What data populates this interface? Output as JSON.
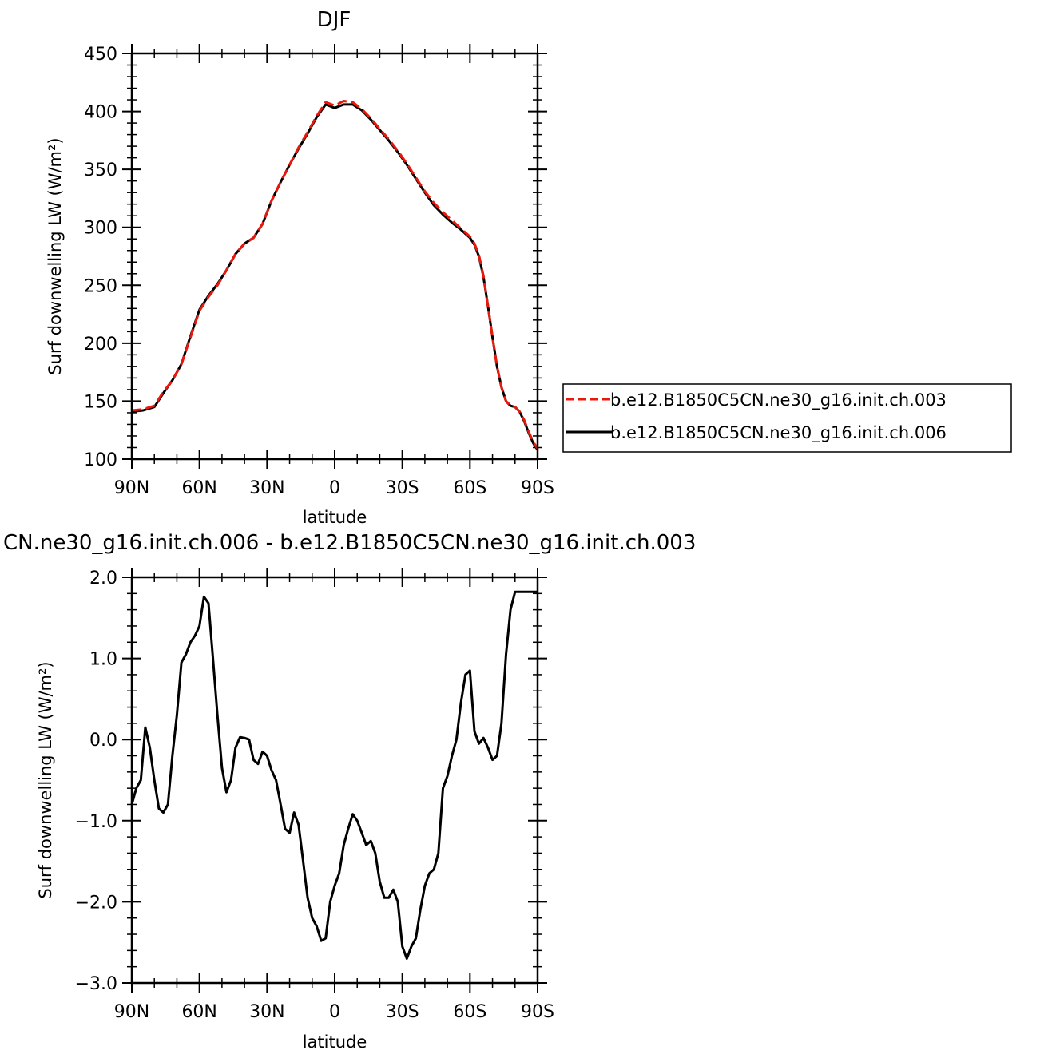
{
  "chart_data": [
    {
      "type": "line",
      "title": "DJF",
      "xlabel": "latitude",
      "ylabel": "Surf  downwelling LW (W/m²)",
      "xlim": [
        90,
        -90
      ],
      "ylim": [
        100,
        450
      ],
      "x_ticks": [
        90,
        60,
        30,
        0,
        -30,
        -60,
        -90
      ],
      "x_tick_labels": [
        "90N",
        "60N",
        "30N",
        "0",
        "30S",
        "60S",
        "90S"
      ],
      "y_ticks": [
        100,
        150,
        200,
        250,
        300,
        350,
        400,
        450
      ],
      "y_tick_labels": [
        "100",
        "150",
        "200",
        "250",
        "300",
        "350",
        "400",
        "450"
      ],
      "legend_position": "right",
      "x": [
        90,
        85,
        80,
        76,
        72,
        68,
        64,
        60,
        56,
        52,
        48,
        44,
        40,
        36,
        32,
        28,
        24,
        20,
        16,
        12,
        8,
        4,
        0,
        -4,
        -8,
        -12,
        -16,
        -20,
        -24,
        -28,
        -32,
        -36,
        -40,
        -44,
        -48,
        -52,
        -56,
        -60,
        -62,
        -64,
        -66,
        -68,
        -70,
        -72,
        -74,
        -76,
        -78,
        -80,
        -82,
        -84,
        -86,
        -88,
        -90
      ],
      "series": [
        {
          "name": "b.e12.B1850C5CN.ne30_g16.init.ch.003",
          "color": "#e8180c",
          "dash": "dashed",
          "values": [
            142,
            143,
            146,
            158,
            168,
            182,
            205,
            228,
            240,
            250,
            263,
            277,
            286,
            291,
            303,
            323,
            339,
            354,
            369,
            382,
            396,
            408,
            405,
            409,
            408,
            402,
            394,
            385,
            376,
            366,
            355,
            343,
            331,
            321,
            313,
            306,
            299,
            292,
            286,
            276,
            258,
            232,
            205,
            180,
            162,
            150,
            146,
            145,
            141,
            134,
            124,
            115,
            109
          ]
        },
        {
          "name": "b.e12.B1850C5CN.ne30_g16.init.ch.006",
          "color": "#000000",
          "dash": "solid",
          "values": [
            141,
            142,
            145,
            157,
            168,
            182,
            206,
            229,
            241,
            251,
            263,
            277,
            286,
            291,
            303,
            323,
            339,
            354,
            368,
            381,
            395,
            406,
            403,
            406,
            406,
            401,
            393,
            384,
            375,
            365,
            354,
            342,
            330,
            319,
            311,
            304,
            298,
            291,
            285,
            275,
            257,
            232,
            205,
            180,
            162,
            150,
            146,
            145,
            141,
            133,
            123,
            114,
            108
          ]
        }
      ]
    },
    {
      "type": "line",
      "title": "CN.ne30_g16.init.ch.006 - b.e12.B1850C5CN.ne30_g16.init.ch.003",
      "xlabel": "latitude",
      "ylabel": "Surf  downwelling LW (W/m²)",
      "xlim": [
        90,
        -90
      ],
      "ylim": [
        -3.0,
        2.0
      ],
      "x_ticks": [
        90,
        60,
        30,
        0,
        -30,
        -60,
        -90
      ],
      "x_tick_labels": [
        "90N",
        "60N",
        "30N",
        "0",
        "30S",
        "60S",
        "90S"
      ],
      "y_ticks": [
        -3.0,
        -2.0,
        -1.0,
        0.0,
        1.0,
        2.0
      ],
      "y_tick_labels": [
        "−3.0",
        "−2.0",
        "−1.0",
        "0.0",
        "1.0",
        "2.0"
      ],
      "x": [
        90,
        88,
        86,
        84,
        82,
        80,
        78,
        76,
        74,
        72,
        70,
        68,
        66,
        64,
        62,
        60,
        58,
        56,
        54,
        52,
        50,
        48,
        46,
        44,
        42,
        40,
        38,
        36,
        34,
        32,
        30,
        28,
        26,
        24,
        22,
        20,
        18,
        16,
        14,
        12,
        10,
        8,
        6,
        4,
        2,
        0,
        -2,
        -4,
        -6,
        -8,
        -10,
        -12,
        -14,
        -16,
        -18,
        -20,
        -22,
        -24,
        -26,
        -28,
        -30,
        -32,
        -34,
        -36,
        -38,
        -40,
        -42,
        -44,
        -46,
        -48,
        -50,
        -52,
        -54,
        -56,
        -58,
        -60,
        -62,
        -64,
        -66,
        -68,
        -70,
        -72,
        -74,
        -76,
        -78,
        -80,
        -82,
        -84,
        -86,
        -88,
        -90
      ],
      "series": [
        {
          "name": "",
          "color": "#000000",
          "dash": "solid",
          "values": [
            -0.8,
            -0.6,
            -0.5,
            0.15,
            -0.1,
            -0.5,
            -0.85,
            -0.9,
            -0.8,
            -0.2,
            0.3,
            0.95,
            1.05,
            1.2,
            1.28,
            1.4,
            1.76,
            1.68,
            1.0,
            0.3,
            -0.35,
            -0.65,
            -0.5,
            -0.1,
            0.03,
            0.02,
            0.0,
            -0.25,
            -0.3,
            -0.15,
            -0.2,
            -0.38,
            -0.5,
            -0.8,
            -1.1,
            -1.15,
            -0.9,
            -1.05,
            -1.5,
            -1.95,
            -2.2,
            -2.3,
            -2.48,
            -2.45,
            -2.0,
            -1.8,
            -1.65,
            -1.3,
            -1.1,
            -0.92,
            -1.0,
            -1.15,
            -1.3,
            -1.25,
            -1.4,
            -1.75,
            -1.95,
            -1.95,
            -1.85,
            -2.0,
            -2.55,
            -2.7,
            -2.55,
            -2.45,
            -2.1,
            -1.8,
            -1.65,
            -1.6,
            -1.4,
            -0.6,
            -0.45,
            -0.2,
            0.0,
            0.45,
            0.8,
            0.85,
            0.1,
            -0.05,
            0.02,
            -0.1,
            -0.25,
            -0.2,
            0.2,
            1.05,
            1.6,
            1.82,
            1.82,
            1.82,
            1.82,
            1.82,
            1.82
          ]
        }
      ]
    }
  ],
  "legend": {
    "entries": [
      "b.e12.B1850C5CN.ne30_g16.init.ch.003",
      "b.e12.B1850C5CN.ne30_g16.init.ch.006"
    ]
  }
}
